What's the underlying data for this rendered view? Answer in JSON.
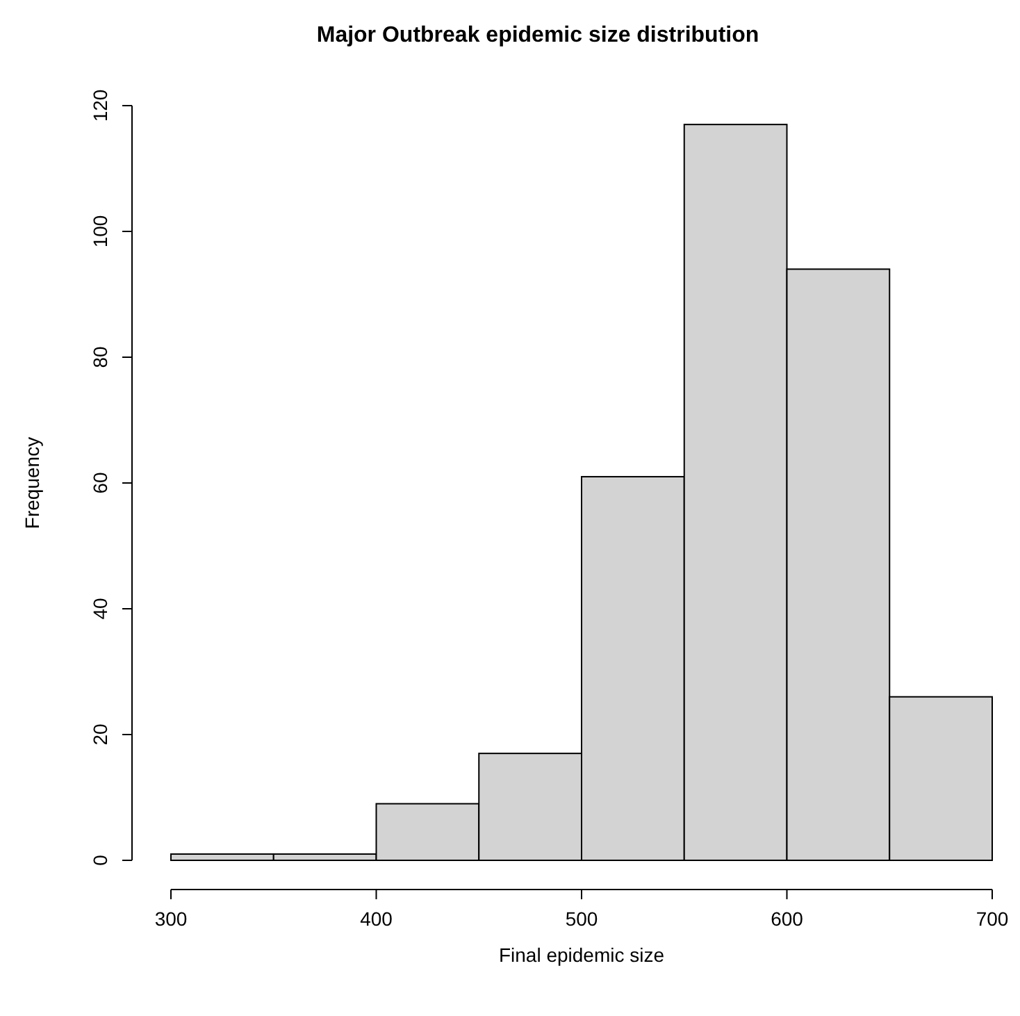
{
  "chart_data": {
    "type": "histogram",
    "title": "Major Outbreak epidemic size distribution",
    "xlabel": "Final epidemic size",
    "ylabel": "Frequency",
    "bins": [
      300,
      350,
      400,
      450,
      500,
      550,
      600,
      650,
      700
    ],
    "values": [
      1,
      1,
      9,
      17,
      61,
      117,
      94,
      26
    ],
    "color": "#d3d3d3",
    "xlim": [
      300,
      700
    ],
    "xticks": [
      300,
      400,
      500,
      600,
      700
    ],
    "ylim": [
      0,
      120
    ],
    "yticks": [
      0,
      20,
      40,
      60,
      80,
      100,
      120
    ],
    "grid": false
  }
}
